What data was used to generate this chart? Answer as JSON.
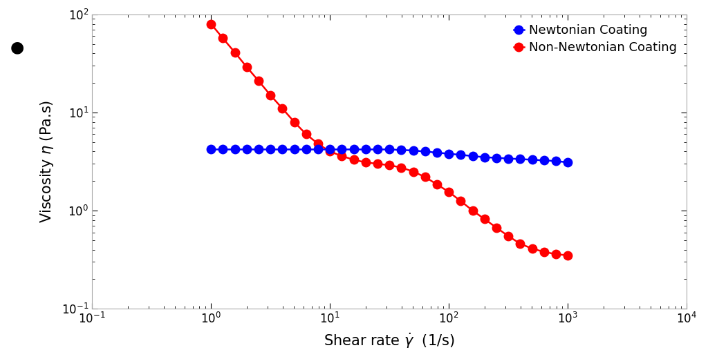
{
  "xlim": [
    0.1,
    10000
  ],
  "ylim": [
    0.1,
    100
  ],
  "newtonian_color": "#0000ff",
  "non_newtonian_color": "#ff0000",
  "legend_newtonian": "Newtonian Coating",
  "legend_non_newtonian": "Non-Newtonian Coating",
  "marker_size": 9,
  "linewidth": 1.8,
  "background_color": "#ffffff",
  "newtonian_x": [
    1.0,
    1.26,
    1.585,
    2.0,
    2.512,
    3.162,
    3.981,
    5.012,
    6.31,
    7.943,
    10.0,
    12.59,
    15.85,
    19.95,
    25.12,
    31.62,
    39.81,
    50.12,
    63.1,
    79.43,
    100.0,
    125.9,
    158.5,
    199.5,
    251.2,
    316.2,
    398.1,
    501.2,
    631.0,
    794.3,
    1000.0
  ],
  "newtonian_y": [
    4.2,
    4.2,
    4.2,
    4.2,
    4.2,
    4.2,
    4.2,
    4.2,
    4.2,
    4.2,
    4.2,
    4.2,
    4.2,
    4.2,
    4.2,
    4.2,
    4.15,
    4.1,
    4.0,
    3.9,
    3.8,
    3.7,
    3.6,
    3.5,
    3.45,
    3.4,
    3.35,
    3.3,
    3.25,
    3.2,
    3.1
  ],
  "non_newtonian_x": [
    1.0,
    1.26,
    1.585,
    2.0,
    2.512,
    3.162,
    3.981,
    5.012,
    6.31,
    7.943,
    10.0,
    12.59,
    15.85,
    19.95,
    25.12,
    31.62,
    39.81,
    50.12,
    63.1,
    79.43,
    100.0,
    125.9,
    158.5,
    199.5,
    251.2,
    316.2,
    398.1,
    501.2,
    631.0,
    794.3,
    1000.0
  ],
  "non_newtonian_y": [
    80.0,
    57.0,
    41.0,
    29.0,
    21.0,
    15.0,
    11.0,
    8.0,
    6.0,
    4.8,
    4.0,
    3.6,
    3.3,
    3.1,
    3.0,
    2.9,
    2.75,
    2.5,
    2.2,
    1.85,
    1.55,
    1.25,
    1.0,
    0.82,
    0.67,
    0.55,
    0.46,
    0.41,
    0.38,
    0.36,
    0.35
  ]
}
